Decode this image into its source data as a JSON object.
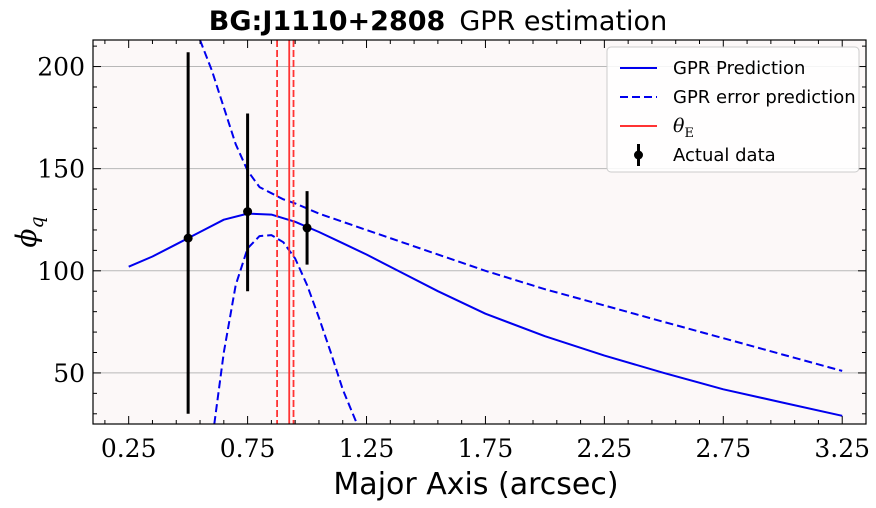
{
  "chart_data": {
    "type": "line",
    "title_bold": "BG:J1110+2808",
    "title_rest": "GPR estimation",
    "xlabel": "Major Axis (arcsec)",
    "ylabel": "ϕ",
    "ylabel_sub": "q",
    "xlim": [
      0.1,
      3.35
    ],
    "ylim": [
      25,
      213
    ],
    "xticks": [
      0.25,
      0.75,
      1.25,
      1.75,
      2.25,
      2.75,
      3.25
    ],
    "xtick_labels": [
      "0.25",
      "0.75",
      "1.25",
      "1.75",
      "2.25",
      "2.75",
      "3.25"
    ],
    "yticks": [
      50,
      100,
      150,
      200
    ],
    "ytick_labels": [
      "50",
      "100",
      "150",
      "200"
    ],
    "grid": "horizontal",
    "background": "#fcf8f8",
    "legend_position": "top-right",
    "series": [
      {
        "name": "GPR Prediction",
        "style": "solid",
        "color": "#0000ee",
        "x": [
          0.25,
          0.35,
          0.45,
          0.55,
          0.65,
          0.75,
          0.85,
          0.95,
          1.05,
          1.15,
          1.25,
          1.4,
          1.55,
          1.75,
          2.0,
          2.25,
          2.5,
          2.75,
          3.0,
          3.25
        ],
        "y": [
          102,
          107,
          113,
          119,
          125,
          128,
          127.5,
          124,
          119,
          113.5,
          108,
          99,
          90,
          79,
          68,
          58.5,
          50,
          42,
          35.5,
          29
        ]
      },
      {
        "name": "GPR error prediction",
        "style": "dashed",
        "color": "#0000ee",
        "x": [
          0.55,
          0.6,
          0.65,
          0.7,
          0.75,
          0.8,
          0.85,
          0.9,
          0.95,
          1.05,
          1.25,
          1.5,
          1.75,
          2.0,
          2.25,
          2.5,
          2.75,
          3.0,
          3.25
        ],
        "y": [
          213,
          198,
          180,
          162,
          149,
          141,
          138,
          135,
          133,
          128,
          120,
          110,
          100,
          91,
          83,
          75,
          67,
          59,
          51
        ]
      },
      {
        "name": "",
        "style": "dashed",
        "color": "#0000ee",
        "x": [
          0.61,
          0.65,
          0.7,
          0.75,
          0.8,
          0.85,
          0.9,
          0.95,
          1.0,
          1.05,
          1.1,
          1.15,
          1.21
        ],
        "y": [
          25,
          60,
          93,
          111,
          117,
          117.5,
          114,
          106,
          93,
          77,
          60,
          42,
          25
        ]
      }
    ],
    "vlines": [
      {
        "x": 0.874,
        "style": "dashed",
        "color": "#ff3333"
      },
      {
        "x": 0.925,
        "style": "solid",
        "color": "#ff3333"
      },
      {
        "x": 0.943,
        "style": "dashed",
        "color": "#ff3333"
      }
    ],
    "data_points": {
      "name": "Actual data",
      "color": "#000000",
      "x": [
        0.5,
        0.75,
        1.0
      ],
      "y": [
        116,
        129,
        121
      ],
      "yerr_low": [
        30,
        90,
        103
      ],
      "yerr_high": [
        207,
        177,
        139
      ]
    },
    "legend": [
      {
        "label": "GPR Prediction",
        "kind": "solid-blue"
      },
      {
        "label": "GPR error prediction",
        "kind": "dashed-blue"
      },
      {
        "label": "θ",
        "label_sub": "E",
        "kind": "solid-red"
      },
      {
        "label": "Actual data",
        "kind": "errorbar"
      }
    ]
  }
}
